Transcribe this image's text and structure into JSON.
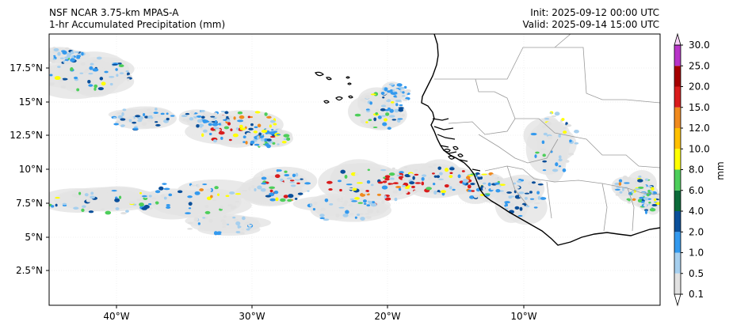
{
  "header": {
    "model": "NSF NCAR 3.75-km MPAS-A",
    "field": "1-hr Accumulated Precipitation (mm)",
    "init": "Init: 2025-09-12 00:00 UTC",
    "valid": "Valid: 2025-09-14 15:00 UTC"
  },
  "axes": {
    "lat_labels": [
      "17.5°N",
      "15°N",
      "12.5°N",
      "10°N",
      "7.5°N",
      "5°N",
      "2.5°N"
    ],
    "lon_labels": [
      "40°W",
      "30°W",
      "20°W",
      "10°W"
    ]
  },
  "colorbar": {
    "unit": "mm",
    "levels": [
      "0.1",
      "0.5",
      "1.0",
      "2.0",
      "4.0",
      "6.0",
      "8.0",
      "10.0",
      "12.0",
      "15.0",
      "20.0",
      "25.0",
      "30.0"
    ],
    "colors": [
      "#e1e1e1",
      "#a6cfee",
      "#3399ee",
      "#0a4f9a",
      "#0b6a3a",
      "#4dce5a",
      "#ffff00",
      "#ffc000",
      "#f08a1e",
      "#d91c1c",
      "#a50000",
      "#b834c8",
      "#e47ae8",
      "#f8d0f8"
    ]
  },
  "map": {
    "domain": "West Africa / tropical Atlantic",
    "coastline_color": "#000000",
    "border_color": "#9a9a9a"
  }
}
